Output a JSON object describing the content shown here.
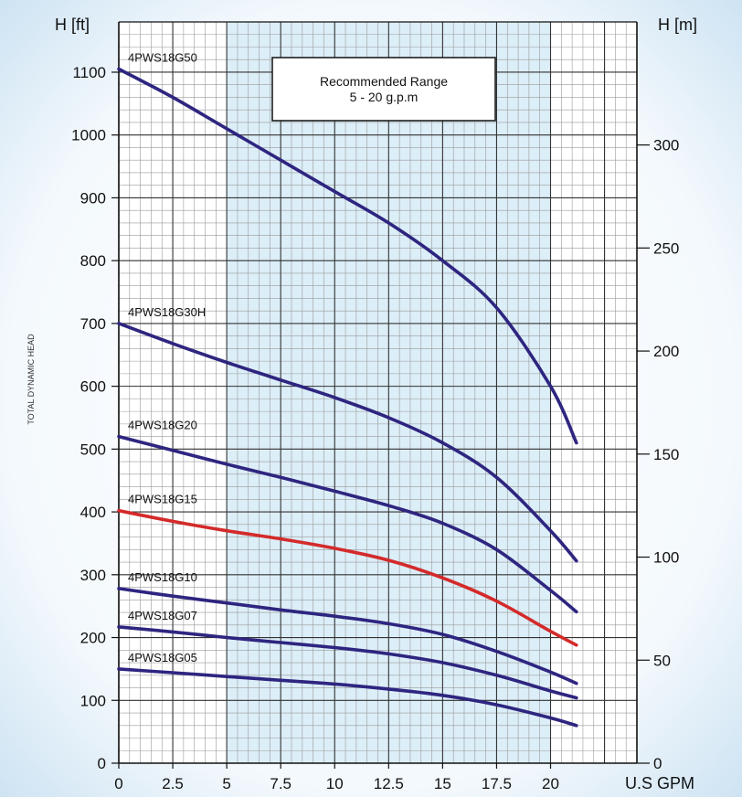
{
  "chart_data": {
    "type": "line",
    "xlabel": "U.S GPM",
    "ylabel_left": "H [ft]",
    "ylabel_right": "H [m]",
    "side_label": "TOTAL DYNAMIC HEAD",
    "xlim": [
      0,
      24
    ],
    "ylim": [
      0,
      1180
    ],
    "ylim_right_m": [
      0,
      359.7
    ],
    "x_ticks": [
      0,
      2.5,
      5,
      7.5,
      10,
      12.5,
      15,
      17.5,
      20
    ],
    "x_tick_labels": [
      "0",
      "2.5",
      "5",
      "7.5",
      "10",
      "12.5",
      "15",
      "17.5",
      "20"
    ],
    "y_ticks": [
      0,
      100,
      200,
      300,
      400,
      500,
      600,
      700,
      800,
      900,
      1000,
      1100
    ],
    "y_tick_labels": [
      "0",
      "100",
      "200",
      "300",
      "400",
      "500",
      "600",
      "700",
      "800",
      "900",
      "1000",
      "1100"
    ],
    "y2_ticks": [
      0,
      50,
      100,
      150,
      200,
      250,
      300
    ],
    "y2_tick_labels": [
      "0",
      "50",
      "100",
      "150",
      "200",
      "250",
      "300"
    ],
    "recommended_range": {
      "x": [
        5,
        20
      ],
      "title": "Recommended Range",
      "subtitle": "5 - 20 g.p.m"
    },
    "grid": true,
    "series": [
      {
        "name": "4PWS18G50",
        "color": "#2e2580",
        "x": [
          0,
          2.5,
          5,
          7.5,
          10,
          12.5,
          15,
          17.5,
          20,
          21.2
        ],
        "y": [
          1105,
          1060,
          1010,
          960,
          910,
          860,
          800,
          725,
          600,
          510
        ]
      },
      {
        "name": "4PWS18G30H",
        "color": "#2e2580",
        "x": [
          0,
          2.5,
          5,
          7.5,
          10,
          12.5,
          15,
          17.5,
          20,
          21.2
        ],
        "y": [
          700,
          668,
          638,
          610,
          582,
          550,
          510,
          455,
          370,
          322
        ]
      },
      {
        "name": "4PWS18G20",
        "color": "#2e2580",
        "x": [
          0,
          2.5,
          5,
          7.5,
          10,
          12.5,
          15,
          17.5,
          20,
          21.2
        ],
        "y": [
          520,
          498,
          476,
          455,
          433,
          410,
          382,
          340,
          275,
          241
        ]
      },
      {
        "name": "4PWS18G15",
        "color": "#d42a2a",
        "x": [
          0,
          2.5,
          5,
          7.5,
          10,
          12.5,
          15,
          17.5,
          20,
          21.2
        ],
        "y": [
          402,
          385,
          370,
          357,
          342,
          323,
          295,
          258,
          210,
          188
        ]
      },
      {
        "name": "4PWS18G10",
        "color": "#2e2580",
        "x": [
          0,
          2.5,
          5,
          7.5,
          10,
          12.5,
          15,
          17.5,
          20,
          21.2
        ],
        "y": [
          278,
          266,
          255,
          244,
          234,
          222,
          205,
          178,
          145,
          127
        ]
      },
      {
        "name": "4PWS18G07",
        "color": "#2e2580",
        "x": [
          0,
          2.5,
          5,
          7.5,
          10,
          12.5,
          15,
          17.5,
          20,
          21.2
        ],
        "y": [
          217,
          209,
          200,
          192,
          184,
          174,
          160,
          140,
          115,
          104
        ]
      },
      {
        "name": "4PWS18G05",
        "color": "#2e2580",
        "x": [
          0,
          2.5,
          5,
          7.5,
          10,
          12.5,
          15,
          17.5,
          20,
          21.2
        ],
        "y": [
          150,
          144,
          138,
          132,
          126,
          118,
          108,
          93,
          72,
          60
        ]
      }
    ]
  }
}
